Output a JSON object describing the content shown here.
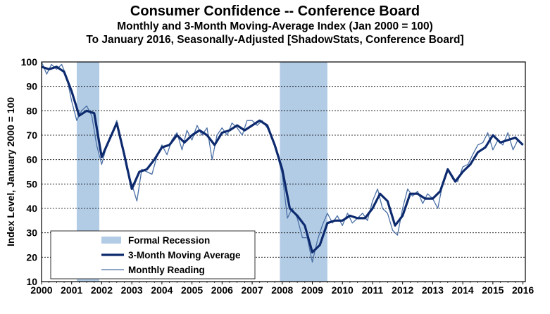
{
  "chart_data": {
    "type": "line",
    "title": "Consumer Confidence -- Conference Board",
    "subtitle_1": "Monthly and 3-Month Moving-Average Index (Jan 2000 = 100)",
    "subtitle_2": "To January 2016, Seasonally-Adjusted [ShadowStats, Conference Board]",
    "ylabel": "Index Level, January 2000 = 100",
    "xlabel": "",
    "ylim": [
      10,
      100
    ],
    "xlim": [
      2000,
      2016.08
    ],
    "yticks": [
      "10",
      "20",
      "30",
      "40",
      "50",
      "60",
      "70",
      "80",
      "90",
      "100"
    ],
    "xticks": [
      "2000",
      "2001",
      "2002",
      "2003",
      "2004",
      "2005",
      "2006",
      "2007",
      "2008",
      "2009",
      "2010",
      "2011",
      "2012",
      "2013",
      "2014",
      "2015",
      "2016"
    ],
    "grid": true,
    "legend": {
      "placement": "bottom-left",
      "entries": [
        "Formal Recession",
        "3-Month Moving Average",
        "Monthly Reading"
      ]
    },
    "recessions": [
      [
        2001.17,
        2001.92
      ],
      [
        2007.92,
        2009.5
      ]
    ],
    "colors": {
      "recession": "#b3cce6",
      "moving_average": "#0d2a6e",
      "monthly": "#4a6fa5",
      "grid": "#000000"
    },
    "series": [
      {
        "name": "3-Month Moving Average",
        "x": [
          2000.0,
          2000.25,
          2000.5,
          2000.75,
          2001.0,
          2001.25,
          2001.5,
          2001.75,
          2002.0,
          2002.25,
          2002.5,
          2002.75,
          2003.0,
          2003.25,
          2003.5,
          2003.75,
          2004.0,
          2004.25,
          2004.5,
          2004.75,
          2005.0,
          2005.25,
          2005.5,
          2005.75,
          2006.0,
          2006.25,
          2006.5,
          2006.75,
          2007.0,
          2007.25,
          2007.5,
          2007.75,
          2008.0,
          2008.25,
          2008.5,
          2008.75,
          2009.0,
          2009.25,
          2009.5,
          2009.75,
          2010.0,
          2010.25,
          2010.5,
          2010.75,
          2011.0,
          2011.25,
          2011.5,
          2011.75,
          2012.0,
          2012.25,
          2012.5,
          2012.75,
          2013.0,
          2013.25,
          2013.5,
          2013.75,
          2014.0,
          2014.25,
          2014.5,
          2014.75,
          2015.0,
          2015.25,
          2015.5,
          2015.75,
          2016.0
        ],
        "values": [
          98,
          97,
          98,
          96,
          88,
          78,
          80,
          79,
          61,
          68,
          75,
          62,
          48,
          55,
          56,
          60,
          65,
          66,
          70,
          67,
          70,
          72,
          70,
          66,
          71,
          72,
          74,
          72,
          74,
          76,
          74,
          66,
          56,
          40,
          37,
          33,
          22,
          25,
          34,
          35,
          35,
          37,
          36,
          36,
          40,
          46,
          43,
          33,
          37,
          46,
          46,
          44,
          44,
          47,
          56,
          51,
          55,
          58,
          63,
          65,
          70,
          67,
          68,
          69,
          66
        ]
      },
      {
        "name": "Monthly Reading",
        "x": [
          2000.0,
          2000.17,
          2000.33,
          2000.5,
          2000.67,
          2000.83,
          2001.0,
          2001.17,
          2001.33,
          2001.5,
          2001.67,
          2001.83,
          2002.0,
          2002.17,
          2002.33,
          2002.5,
          2002.67,
          2002.83,
          2003.0,
          2003.17,
          2003.33,
          2003.5,
          2003.67,
          2003.83,
          2004.0,
          2004.17,
          2004.33,
          2004.5,
          2004.67,
          2004.83,
          2005.0,
          2005.17,
          2005.33,
          2005.5,
          2005.67,
          2005.83,
          2006.0,
          2006.17,
          2006.33,
          2006.5,
          2006.67,
          2006.83,
          2007.0,
          2007.17,
          2007.33,
          2007.5,
          2007.67,
          2007.83,
          2008.0,
          2008.17,
          2008.33,
          2008.5,
          2008.67,
          2008.83,
          2009.0,
          2009.17,
          2009.33,
          2009.5,
          2009.67,
          2009.83,
          2010.0,
          2010.17,
          2010.33,
          2010.5,
          2010.67,
          2010.83,
          2011.0,
          2011.17,
          2011.33,
          2011.5,
          2011.67,
          2011.83,
          2012.0,
          2012.17,
          2012.33,
          2012.5,
          2012.67,
          2012.83,
          2013.0,
          2013.17,
          2013.33,
          2013.5,
          2013.67,
          2013.83,
          2014.0,
          2014.17,
          2014.33,
          2014.5,
          2014.67,
          2014.83,
          2015.0,
          2015.17,
          2015.33,
          2015.5,
          2015.67,
          2015.83,
          2016.0
        ],
        "values": [
          100,
          95,
          99,
          97,
          99,
          94,
          84,
          76,
          80,
          82,
          78,
          66,
          58,
          66,
          70,
          76,
          66,
          56,
          50,
          43,
          56,
          55,
          54,
          61,
          66,
          62,
          68,
          71,
          64,
          72,
          68,
          74,
          70,
          73,
          60,
          70,
          73,
          70,
          75,
          73,
          70,
          76,
          76,
          74,
          76,
          73,
          69,
          62,
          54,
          36,
          40,
          36,
          28,
          28,
          18,
          27,
          33,
          38,
          34,
          37,
          33,
          38,
          34,
          36,
          38,
          35,
          43,
          48,
          40,
          38,
          31,
          29,
          40,
          48,
          45,
          47,
          42,
          46,
          44,
          40,
          50,
          56,
          52,
          51,
          57,
          58,
          62,
          66,
          67,
          71,
          64,
          68,
          66,
          71,
          64,
          68,
          66
        ]
      }
    ]
  }
}
